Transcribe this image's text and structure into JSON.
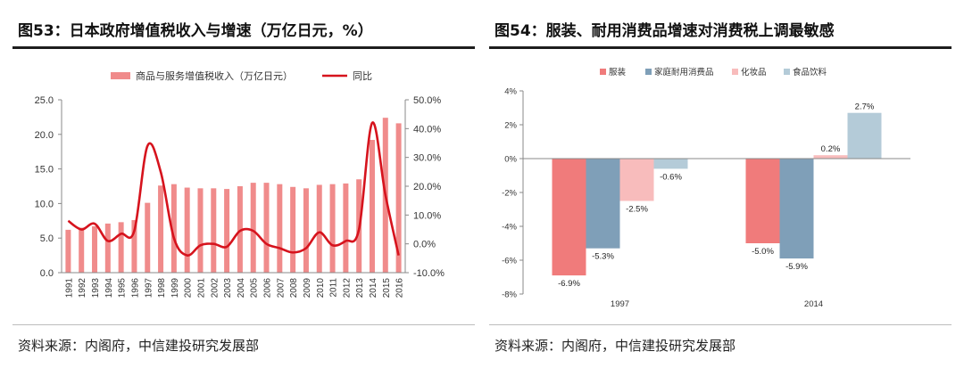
{
  "panels": [
    {
      "title": "图53：日本政府增值税收入与增速（万亿日元，%）",
      "source": "资料来源：内阁府，中信建投研究发展部"
    },
    {
      "title": "图54：服装、耐用消费品增速对消费税上调最敏感",
      "source": "资料来源：内阁府，中信建投研究发展部"
    }
  ],
  "colors": {
    "bar_pink": "#f08b8b",
    "line_red": "#d6131d",
    "clothing": "#f07b7b",
    "durables": "#7f9fb8",
    "cosmetics": "#f8bcbc",
    "food": "#b4cbd8",
    "axis": "#888888"
  },
  "chart_data": [
    {
      "type": "bar+line",
      "title": "图53：日本政府增值税收入与增速（万亿日元，%）",
      "legend": [
        "商品与服务增值税收入（万亿日元）",
        "同比"
      ],
      "legend_position": "top-center",
      "categories": [
        "1991",
        "1992",
        "1993",
        "1994",
        "1995",
        "1996",
        "1997",
        "1998",
        "1999",
        "2000",
        "2001",
        "2002",
        "2003",
        "2004",
        "2005",
        "2006",
        "2007",
        "2008",
        "2009",
        "2010",
        "2011",
        "2012",
        "2013",
        "2014",
        "2015",
        "2016"
      ],
      "series": [
        {
          "name": "商品与服务增值税收入（万亿日元）",
          "axis": "left",
          "kind": "bar",
          "values": [
            6.2,
            6.5,
            6.7,
            7.1,
            7.3,
            7.6,
            10.1,
            12.6,
            12.8,
            12.3,
            12.2,
            12.2,
            12.1,
            12.5,
            13.0,
            13.0,
            12.8,
            12.4,
            12.2,
            12.7,
            12.8,
            12.9,
            13.5,
            19.2,
            22.4,
            21.6
          ]
        },
        {
          "name": "同比",
          "axis": "right",
          "kind": "line",
          "values": [
            8.0,
            5.0,
            7.0,
            1.0,
            3.5,
            4.5,
            34.0,
            25.0,
            2.0,
            -4.0,
            -0.5,
            0.0,
            -1.0,
            4.5,
            4.5,
            0.0,
            -1.5,
            -3.0,
            -1.5,
            4.0,
            -0.5,
            1.0,
            5.0,
            42.0,
            17.0,
            -4.0
          ]
        }
      ],
      "ylim_left": [
        0,
        25
      ],
      "yticks_left": [
        "0.0",
        "5.0",
        "10.0",
        "15.0",
        "20.0",
        "25.0"
      ],
      "ylim_right": [
        -10,
        50
      ],
      "yticks_right": [
        "-10.0%",
        "0.0%",
        "10.0%",
        "20.0%",
        "30.0%",
        "40.0%",
        "50.0%"
      ],
      "grid": false
    },
    {
      "type": "bar",
      "title": "图54：服装、耐用消费品增速对消费税上调最敏感",
      "legend_position": "top",
      "categories": [
        "1997",
        "2014"
      ],
      "series": [
        {
          "name": "服装",
          "values": [
            -6.9,
            -5.0
          ],
          "labels": [
            "-6.9%",
            "-5.0%"
          ]
        },
        {
          "name": "家庭耐用消费品",
          "values": [
            -5.3,
            -5.9
          ],
          "labels": [
            "-5.3%",
            "-5.9%"
          ]
        },
        {
          "name": "化妆品",
          "values": [
            -2.5,
            0.2
          ],
          "labels": [
            "-2.5%",
            "0.2%"
          ]
        },
        {
          "name": "食品饮料",
          "values": [
            -0.6,
            2.7
          ],
          "labels": [
            "-0.6%",
            "2.7%"
          ]
        }
      ],
      "ylim": [
        -8,
        4
      ],
      "yticks": [
        "4%",
        "2%",
        "0%",
        "-2%",
        "-4%",
        "-6%",
        "-8%"
      ],
      "grid": false
    }
  ]
}
